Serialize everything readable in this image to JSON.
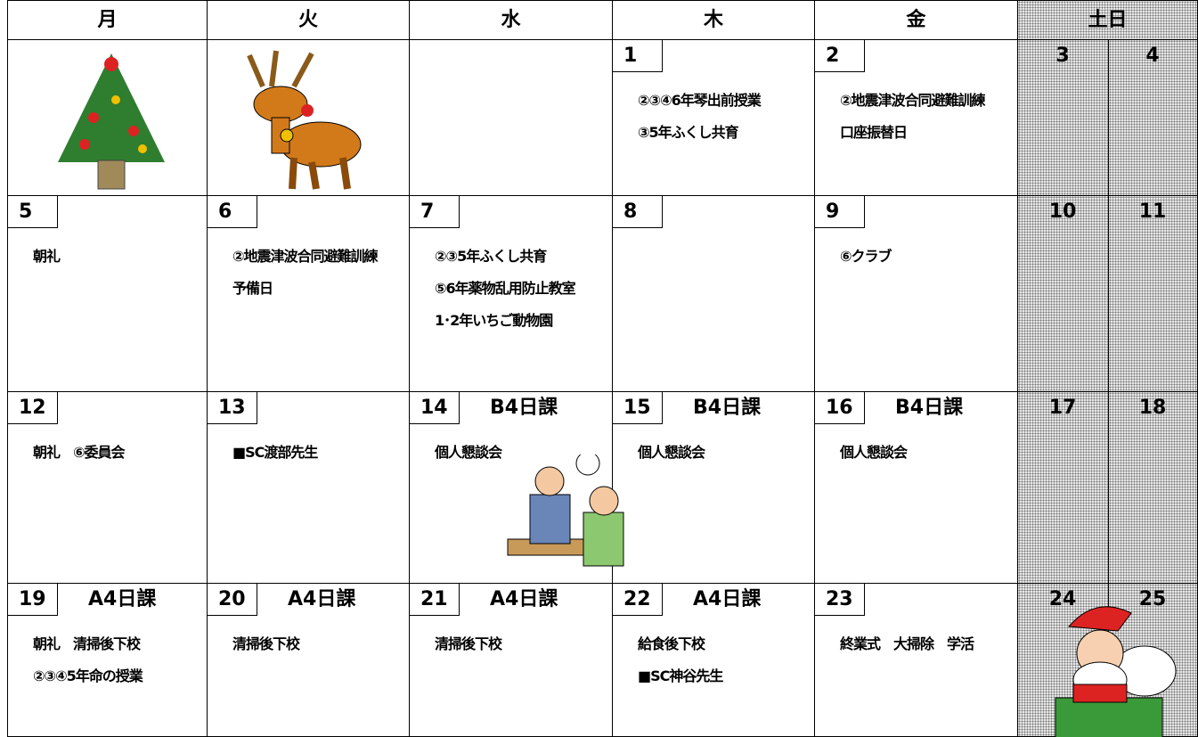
{
  "header": {
    "days": [
      "月",
      "火",
      "水",
      "木",
      "金",
      "土日"
    ]
  },
  "weeks": [
    {
      "days": [
        {},
        {},
        {},
        {
          "date": 1,
          "lines": [
            "②③④6年琴出前授業",
            "③5年ふくし共育"
          ]
        },
        {
          "date": 2,
          "lines": [
            "②地震津波合同避難訓練",
            "口座振替日"
          ]
        }
      ],
      "weekend": [
        3,
        4
      ]
    },
    {
      "days": [
        {
          "date": 5,
          "lines": [
            "朝礼"
          ]
        },
        {
          "date": 6,
          "lines": [
            "②地震津波合同避難訓練",
            "予備日"
          ]
        },
        {
          "date": 7,
          "lines": [
            "②③5年ふくし共育",
            "⑤6年薬物乱用防止教室",
            "1･2年いちご動物園"
          ]
        },
        {
          "date": 8
        },
        {
          "date": 9,
          "lines": [
            "⑥クラブ"
          ]
        }
      ],
      "weekend": [
        10,
        11
      ]
    },
    {
      "days": [
        {
          "date": 12,
          "lines": [
            "朝礼　⑥委員会"
          ]
        },
        {
          "date": 13,
          "lines": [
            "■SC渡部先生"
          ]
        },
        {
          "date": 14,
          "tag": "B4日課",
          "lines": [
            "個人懇談会"
          ]
        },
        {
          "date": 15,
          "tag": "B4日課",
          "lines": [
            "個人懇談会"
          ]
        },
        {
          "date": 16,
          "tag": "B4日課",
          "lines": [
            "個人懇談会"
          ]
        }
      ],
      "weekend": [
        17,
        18
      ]
    },
    {
      "days": [
        {
          "date": 19,
          "tag": "A4日課",
          "lines": [
            "朝礼　清掃後下校",
            "②③④5年命の授業"
          ]
        },
        {
          "date": 20,
          "tag": "A4日課",
          "lines": [
            "清掃後下校"
          ]
        },
        {
          "date": 21,
          "tag": "A4日課",
          "lines": [
            "清掃後下校"
          ]
        },
        {
          "date": 22,
          "tag": "A4日課",
          "lines": [
            "給食後下校",
            "■SC神谷先生"
          ]
        },
        {
          "date": 23,
          "lines": [
            "終業式　大掃除　学活"
          ]
        }
      ],
      "weekend": [
        24,
        25
      ]
    }
  ]
}
